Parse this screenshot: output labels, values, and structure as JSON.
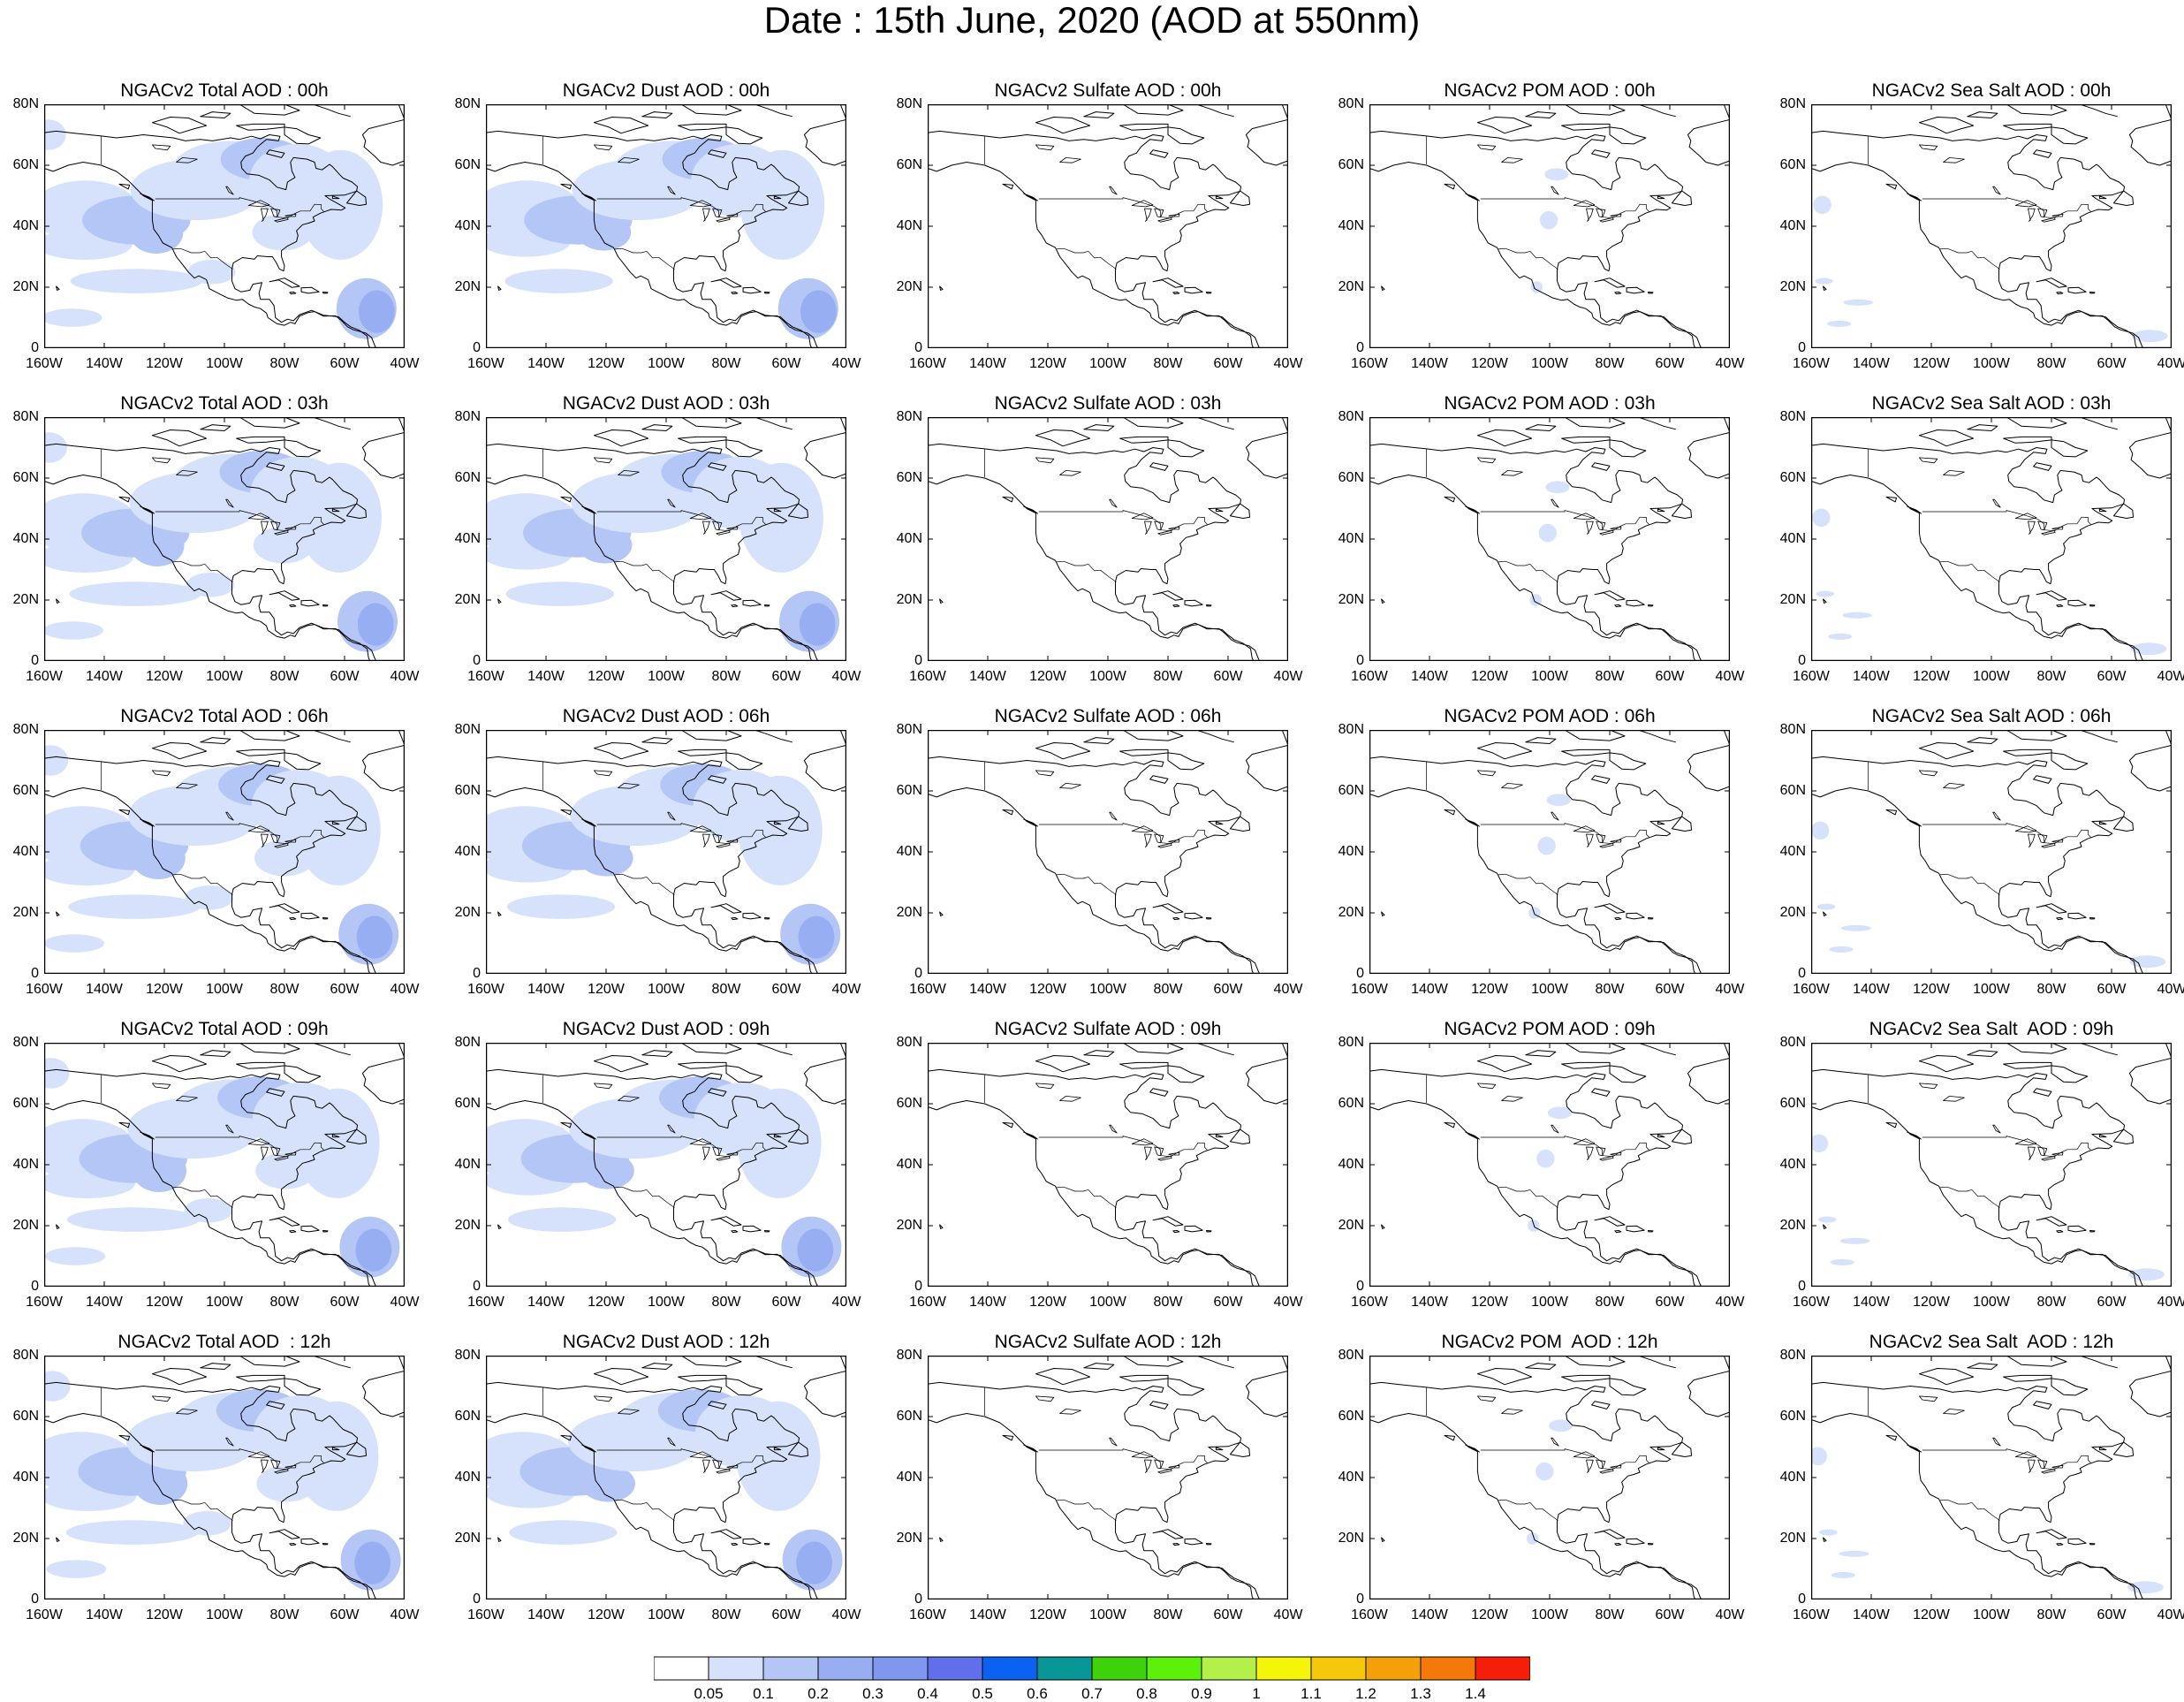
{
  "title": "Date : 15th June, 2020 (AOD at 550nm)",
  "panels": [
    [
      "NGACv2 Total AOD : 00h",
      "NGACv2 Dust AOD : 00h",
      "NGACv2 Sulfate AOD : 00h",
      "NGACv2 POM AOD : 00h",
      "NGACv2 Sea Salt AOD : 00h"
    ],
    [
      "NGACv2 Total AOD : 03h",
      "NGACv2 Dust AOD : 03h",
      "NGACv2 Sulfate AOD : 03h",
      "NGACv2 POM AOD : 03h",
      "NGACv2 Sea Salt AOD : 03h"
    ],
    [
      "NGACv2 Total AOD : 06h",
      "NGACv2 Dust AOD : 06h",
      "NGACv2 Sulfate AOD : 06h",
      "NGACv2 POM AOD : 06h",
      "NGACv2 Sea Salt AOD : 06h"
    ],
    [
      "NGACv2 Total AOD : 09h",
      "NGACv2 Dust AOD : 09h",
      "NGACv2 Sulfate AOD : 09h",
      "NGACv2 POM AOD : 09h",
      "NGACv2 Sea Salt  AOD : 09h"
    ],
    [
      "NGACv2 Total AOD  : 12h",
      "NGACv2 Dust AOD : 12h",
      "NGACv2 Sulfate AOD : 12h",
      "NGACv2 POM  AOD : 12h",
      "NGACv2 Sea Salt  AOD : 12h"
    ]
  ],
  "latitude_ticks": [
    "80N",
    "60N",
    "40N",
    "20N",
    "0"
  ],
  "longitude_ticks": [
    "160W",
    "140W",
    "120W",
    "100W",
    "80W",
    "60W",
    "40W"
  ],
  "map_extent": {
    "lon_min": -160,
    "lon_max": -40,
    "lat_min": 0,
    "lat_max": 80
  },
  "colorbar": {
    "labels": [
      "0.05",
      "0.1",
      "0.2",
      "0.3",
      "0.4",
      "0.5",
      "0.6",
      "0.7",
      "0.8",
      "0.9",
      "1",
      "1.1",
      "1.2",
      "1.3",
      "1.4"
    ],
    "colors": [
      "#ffffff",
      "#d6e2fb",
      "#b4c6f5",
      "#97aef3",
      "#8097f0",
      "#6170ea",
      "#0a63f0",
      "#0a9696",
      "#3dd20a",
      "#5cf00a",
      "#b3f04a",
      "#f5f50a",
      "#f5c80a",
      "#f5a00a",
      "#f5780a",
      "#f51e0a"
    ]
  },
  "colors": {
    "light_blue": "#d6e2fb",
    "medium_blue": "#b4c6f5",
    "blue": "#97aef3",
    "coastline": "#000000"
  }
}
